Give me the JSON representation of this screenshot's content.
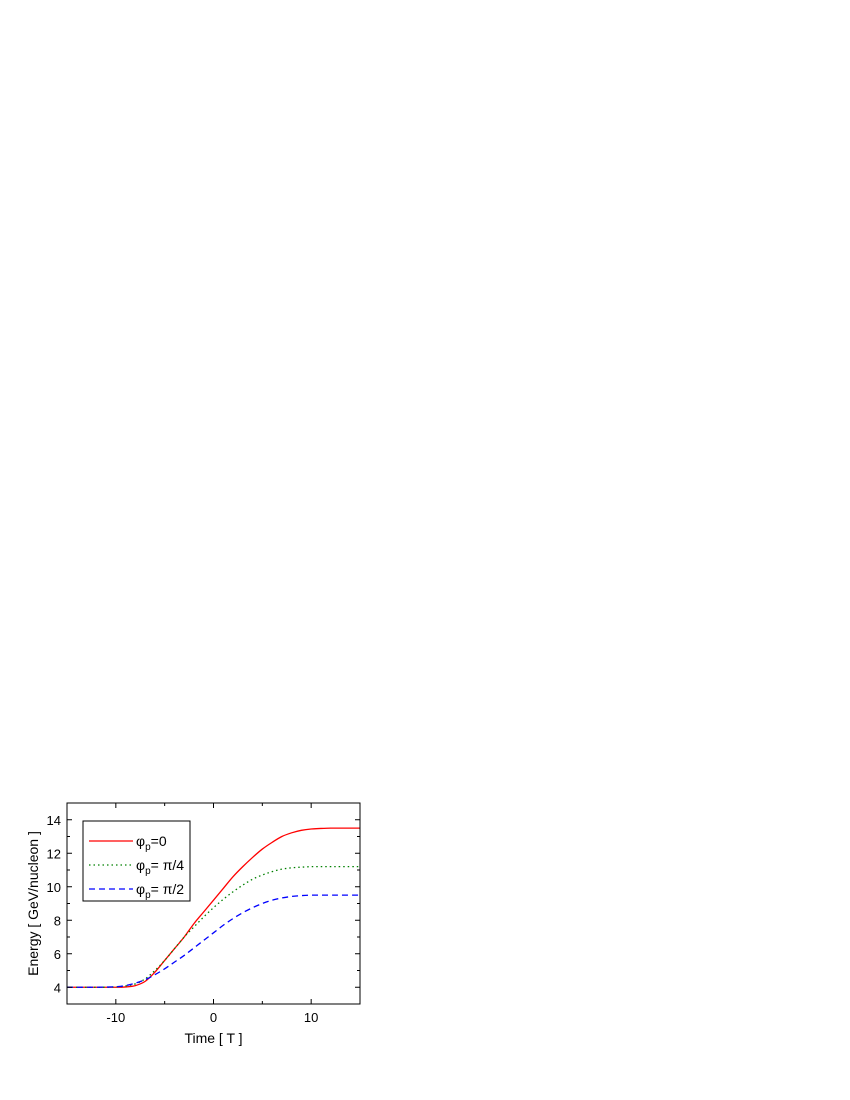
{
  "chart_data": {
    "type": "line",
    "title": "",
    "xlabel": "Time [ T ]",
    "ylabel": "Energy [ GeV/nucleon ]",
    "xlim": [
      -15,
      15
    ],
    "ylim": [
      3,
      15
    ],
    "xticks": [
      -10,
      0,
      10
    ],
    "yticks": [
      4,
      6,
      8,
      10,
      12,
      14
    ],
    "grid": false,
    "legend_position": "top-left",
    "series": [
      {
        "name": "φp=0",
        "label_main": "φ",
        "label_sub": "p",
        "label_rest": "=0",
        "color": "#ff0000",
        "dash": "solid",
        "x": [
          -15,
          -12,
          -10,
          -9,
          -8,
          -7,
          -6,
          -5,
          -4,
          -3,
          -2,
          -1,
          0,
          1,
          2,
          3,
          4,
          5,
          6,
          7,
          8,
          9,
          10,
          11,
          12,
          13,
          15
        ],
        "y": [
          4.0,
          4.0,
          4.0,
          4.02,
          4.1,
          4.35,
          4.9,
          5.6,
          6.3,
          7.0,
          7.8,
          8.5,
          9.2,
          9.9,
          10.6,
          11.2,
          11.75,
          12.25,
          12.65,
          13.0,
          13.22,
          13.37,
          13.45,
          13.48,
          13.5,
          13.5,
          13.5
        ]
      },
      {
        "name": "φp= π/4",
        "label_main": "φ",
        "label_sub": "p",
        "label_rest": "= π/4",
        "color": "#008000",
        "dash": "dotted",
        "x": [
          -15,
          -12,
          -10,
          -9,
          -8,
          -7,
          -6,
          -5,
          -4,
          -3,
          -2,
          -1,
          0,
          1,
          2,
          3,
          4,
          5,
          6,
          7,
          8,
          9,
          10,
          11,
          12,
          13,
          15
        ],
        "y": [
          4.0,
          4.0,
          4.02,
          4.08,
          4.2,
          4.5,
          5.0,
          5.6,
          6.3,
          7.0,
          7.6,
          8.2,
          8.75,
          9.25,
          9.7,
          10.1,
          10.45,
          10.7,
          10.9,
          11.05,
          11.13,
          11.17,
          11.2,
          11.2,
          11.2,
          11.2,
          11.2
        ]
      },
      {
        "name": "φp= π/2",
        "label_main": "φ",
        "label_sub": "p",
        "label_rest": "= π/2",
        "color": "#0000ff",
        "dash": "dashed",
        "x": [
          -15,
          -12,
          -10,
          -9,
          -8,
          -7,
          -6,
          -5,
          -4,
          -3,
          -2,
          -1,
          0,
          1,
          2,
          3,
          4,
          5,
          6,
          7,
          8,
          9,
          10,
          11,
          12,
          13,
          15
        ],
        "y": [
          4.0,
          4.0,
          4.03,
          4.1,
          4.25,
          4.45,
          4.75,
          5.1,
          5.5,
          5.9,
          6.35,
          6.8,
          7.25,
          7.7,
          8.1,
          8.45,
          8.75,
          9.0,
          9.2,
          9.33,
          9.42,
          9.47,
          9.5,
          9.5,
          9.5,
          9.5,
          9.5
        ]
      }
    ]
  }
}
